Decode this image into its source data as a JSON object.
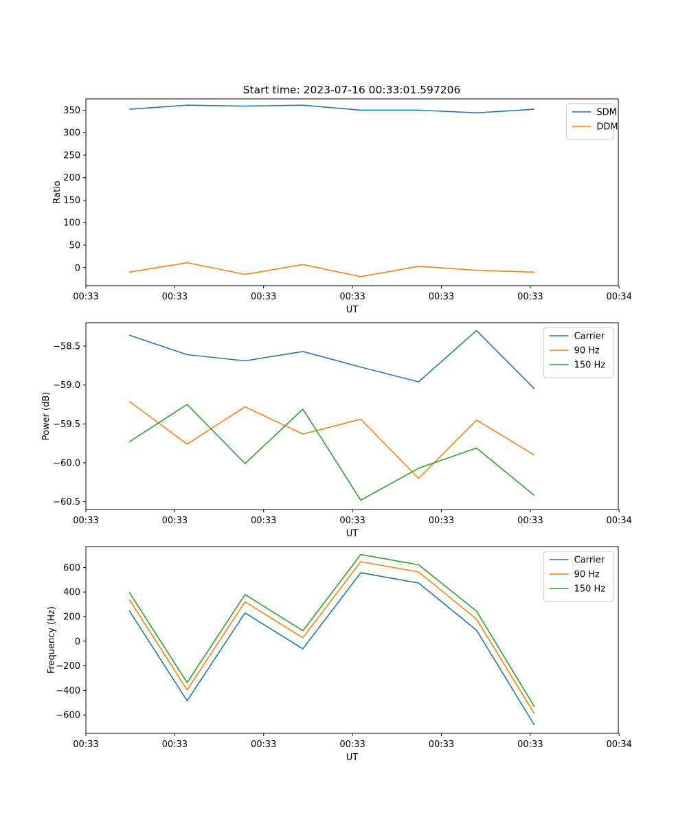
{
  "title": "Start time: 2023-07-16 00:33:01.597206",
  "colors": {
    "blue": "#1f77b4",
    "orange": "#ff7f0e",
    "green": "#2ca02c"
  },
  "chart_data": [
    {
      "type": "line",
      "ylabel": "Ratio",
      "xlabel": "UT",
      "x": [
        0,
        1,
        2,
        3,
        4,
        5,
        6,
        7
      ],
      "xlim": [
        -0.75,
        8.45
      ],
      "x_ticks": [
        -0.75,
        0.786,
        2.321,
        3.857,
        5.393,
        6.929,
        8.464
      ],
      "x_tick_labels": [
        "00:33",
        "00:33",
        "00:33",
        "00:33",
        "00:33",
        "00:33",
        "00:34"
      ],
      "ylim": [
        -40,
        375
      ],
      "y_ticks": [
        0,
        50,
        100,
        150,
        200,
        250,
        300,
        350
      ],
      "y_tick_labels": [
        "0",
        "50",
        "100",
        "150",
        "200",
        "250",
        "300",
        "350"
      ],
      "legend_position": "top-right",
      "series": [
        {
          "name": "SDM",
          "color": "#1f77b4",
          "values": [
            352,
            361,
            359,
            361,
            350,
            350,
            344,
            352
          ]
        },
        {
          "name": "DDM",
          "color": "#ff7f0e",
          "values": [
            -10,
            11,
            -15,
            7,
            -20,
            3,
            -6,
            -10
          ]
        }
      ]
    },
    {
      "type": "line",
      "ylabel": "Power (dB)",
      "xlabel": "UT",
      "x": [
        0,
        1,
        2,
        3,
        4,
        5,
        6,
        7
      ],
      "xlim": [
        -0.75,
        8.45
      ],
      "x_ticks": [
        -0.75,
        0.786,
        2.321,
        3.857,
        5.393,
        6.929,
        8.464
      ],
      "x_tick_labels": [
        "00:33",
        "00:33",
        "00:33",
        "00:33",
        "00:33",
        "00:33",
        "00:34"
      ],
      "ylim": [
        -60.6,
        -58.2
      ],
      "y_ticks": [
        -58.5,
        -59.0,
        -59.5,
        -60.0,
        -60.5
      ],
      "y_tick_labels": [
        "−58.5",
        "−59.0",
        "−59.5",
        "−60.0",
        "−60.5"
      ],
      "legend_position": "top-right",
      "series": [
        {
          "name": "Carrier",
          "color": "#1f77b4",
          "values": [
            -58.36,
            -58.61,
            -58.69,
            -58.57,
            -58.77,
            -58.96,
            -58.3,
            -59.05
          ]
        },
        {
          "name": "90 Hz",
          "color": "#ff7f0e",
          "values": [
            -59.21,
            -59.76,
            -59.28,
            -59.63,
            -59.44,
            -60.2,
            -59.45,
            -59.9
          ]
        },
        {
          "name": "150 Hz",
          "color": "#2ca02c",
          "values": [
            -59.73,
            -59.25,
            -60.01,
            -59.31,
            -60.48,
            -60.07,
            -59.81,
            -60.42
          ]
        }
      ]
    },
    {
      "type": "line",
      "ylabel": "Frequency (Hz)",
      "xlabel": "UT",
      "x": [
        0,
        1,
        2,
        3,
        4,
        5,
        6,
        7
      ],
      "xlim": [
        -0.75,
        8.45
      ],
      "x_ticks": [
        -0.75,
        0.786,
        2.321,
        3.857,
        5.393,
        6.929,
        8.464
      ],
      "x_tick_labels": [
        "00:33",
        "00:33",
        "00:33",
        "00:33",
        "00:33",
        "00:33",
        "00:34"
      ],
      "ylim": [
        -750,
        770
      ],
      "y_ticks": [
        600,
        400,
        200,
        0,
        -200,
        -400,
        -600
      ],
      "y_tick_labels": [
        "600",
        "400",
        "200",
        "0",
        "−200",
        "−400",
        "−600"
      ],
      "legend_position": "top-right",
      "series": [
        {
          "name": "Carrier",
          "color": "#1f77b4",
          "values": [
            248,
            -485,
            230,
            -62,
            557,
            473,
            90,
            -683
          ]
        },
        {
          "name": "90 Hz",
          "color": "#ff7f0e",
          "values": [
            340,
            -397,
            320,
            28,
            647,
            563,
            180,
            -590
          ]
        },
        {
          "name": "150 Hz",
          "color": "#2ca02c",
          "values": [
            397,
            -337,
            380,
            85,
            705,
            622,
            245,
            -533
          ]
        }
      ]
    }
  ]
}
